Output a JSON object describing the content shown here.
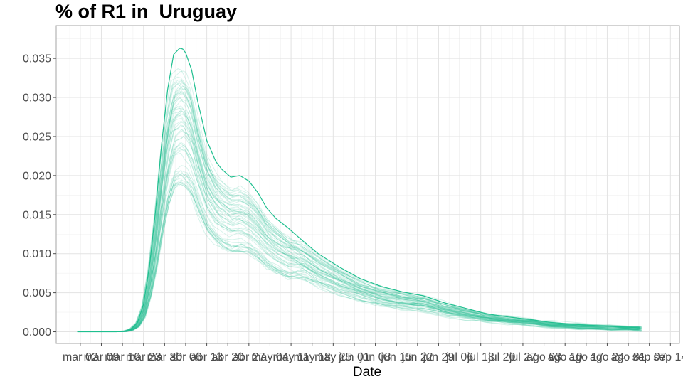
{
  "chart_data": {
    "type": "line",
    "title": "% of R1 in  Uruguay",
    "xlabel": "Date",
    "ylabel": "",
    "ylim": [
      -0.0015,
      0.0392
    ],
    "y_ticks": [
      "0.000",
      "0.005",
      "0.010",
      "0.015",
      "0.020",
      "0.025",
      "0.030",
      "0.035"
    ],
    "x_tick_labels": [
      "mar 02",
      "mar 09",
      "mar 16",
      "mar 23",
      "mar 30",
      "abr 06",
      "abr 13",
      "abr 20",
      "abr 27",
      "may 04",
      "may 11",
      "may 18",
      "may 25",
      "jun 01",
      "jun 08",
      "jun 15",
      "jun 22",
      "jun 29",
      "jul 06",
      "jul 13",
      "jul 20",
      "jul 27",
      "ago 03",
      "ago 10",
      "ago 17",
      "ago 24",
      "ago 31",
      "sep 07",
      "sep 14"
    ],
    "grid": true,
    "series_color": "#1fbf8f",
    "main_series": {
      "x": [
        "2020-03-06",
        "2020-03-10",
        "2020-03-14",
        "2020-03-17",
        "2020-03-19",
        "2020-03-21",
        "2020-03-23",
        "2020-03-25",
        "2020-03-27",
        "2020-03-29",
        "2020-03-31",
        "2020-04-02",
        "2020-04-04",
        "2020-04-05",
        "2020-04-06",
        "2020-04-08",
        "2020-04-10",
        "2020-04-13",
        "2020-04-16",
        "2020-04-18",
        "2020-04-21",
        "2020-04-24",
        "2020-04-27",
        "2020-04-30",
        "2020-05-03",
        "2020-05-06",
        "2020-05-10",
        "2020-05-15",
        "2020-05-20",
        "2020-05-27",
        "2020-06-03",
        "2020-06-10",
        "2020-06-17",
        "2020-06-24",
        "2020-07-01",
        "2020-07-08",
        "2020-07-15",
        "2020-07-22",
        "2020-07-29",
        "2020-08-05",
        "2020-08-15",
        "2020-08-25",
        "2020-09-04"
      ],
      "y": [
        0.0,
        0.0,
        0.0,
        0.0001,
        0.0004,
        0.0012,
        0.0035,
        0.0085,
        0.0155,
        0.024,
        0.031,
        0.0355,
        0.0363,
        0.0362,
        0.0357,
        0.0335,
        0.0295,
        0.0245,
        0.0218,
        0.0208,
        0.0198,
        0.02,
        0.0193,
        0.0178,
        0.0158,
        0.0145,
        0.0133,
        0.0116,
        0.01,
        0.0083,
        0.0068,
        0.0058,
        0.0051,
        0.0046,
        0.0037,
        0.003,
        0.0023,
        0.0019,
        0.0016,
        0.0012,
        0.0009,
        0.0007,
        0.0005
      ]
    },
    "simulation_count": 60
  }
}
